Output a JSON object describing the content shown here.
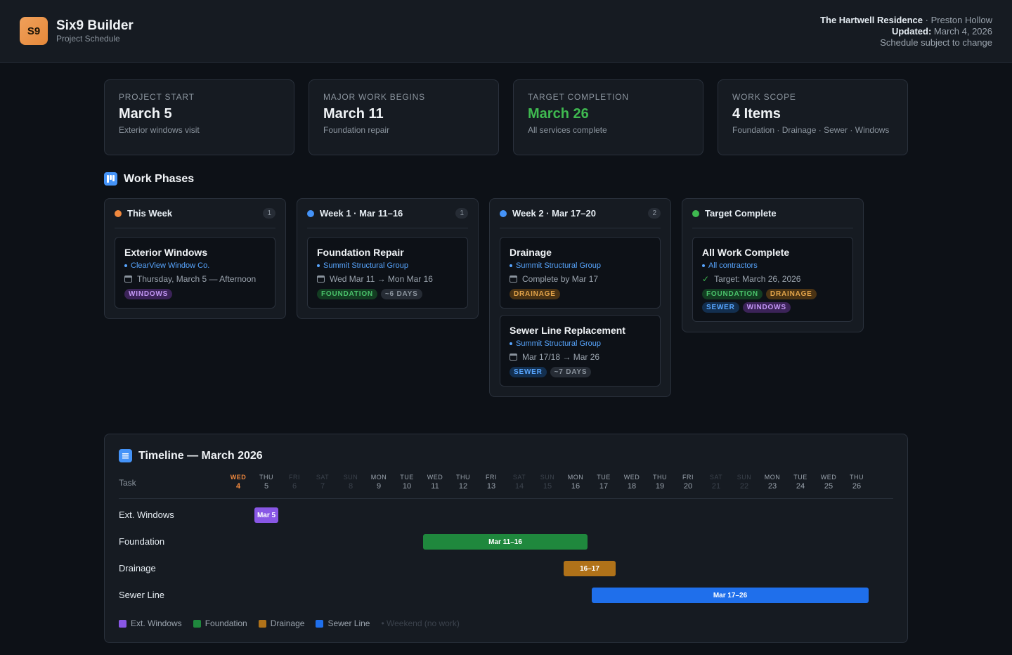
{
  "header": {
    "logo_text": "S9",
    "brand_name": "Six9 Builder",
    "brand_sub": "Project Schedule",
    "project_name": "The Hartwell Residence",
    "project_area": " · Preston Hollow",
    "updated_label": "Updated:",
    "updated_value": " March 4, 2026",
    "note": "Schedule subject to change"
  },
  "stats": [
    {
      "label": "PROJECT START",
      "value": "March 5",
      "desc": "Exterior windows visit"
    },
    {
      "label": "MAJOR WORK BEGINS",
      "value": "March 11",
      "desc": "Foundation repair"
    },
    {
      "label": "TARGET COMPLETION",
      "value": "March 26",
      "desc": "All services complete"
    },
    {
      "label": "WORK SCOPE",
      "value": "4 Items",
      "desc": "Foundation · Drainage · Sewer · Windows"
    }
  ],
  "work_phases": {
    "title": "Work Phases",
    "columns": [
      {
        "title": "This Week",
        "count": "1",
        "dot": "#f0883e",
        "cards": [
          {
            "title": "Exterior Windows",
            "contractor": "ClearView Window Co.",
            "when": "Thursday, March 5 — Afternoon",
            "tags": [
              "WINDOWS"
            ]
          }
        ]
      },
      {
        "title": "Week 1 · Mar 11–16",
        "count": "1",
        "dot": "#4493f8",
        "cards": [
          {
            "title": "Foundation Repair",
            "contractor": "Summit Structural Group",
            "when": "Wed Mar 11 → Mon Mar 16",
            "tags": [
              "FOUNDATION",
              "~6 DAYS"
            ]
          }
        ]
      },
      {
        "title": "Week 2 · Mar 17–20",
        "count": "2",
        "dot": "#4493f8",
        "cards": [
          {
            "title": "Drainage",
            "contractor": "Summit Structural Group",
            "when": "Complete by Mar 17",
            "tags": [
              "DRAINAGE"
            ]
          },
          {
            "title": "Sewer Line Replacement",
            "contractor": "Summit Structural Group",
            "when": "Mar 17/18 → Mar 26",
            "tags": [
              "SEWER",
              "~7 DAYS"
            ]
          }
        ]
      },
      {
        "title": "Target Complete",
        "dot": "#3fb950",
        "cards": [
          {
            "title": "All Work Complete",
            "contractor": "All contractors",
            "when": "Target: March 26, 2026",
            "tags": [
              "FOUNDATION",
              "DRAINAGE",
              "SEWER",
              "WINDOWS"
            ]
          }
        ]
      }
    ]
  },
  "timeline": {
    "title": "Timeline — March 2026",
    "task_label": "Task",
    "days": [
      {
        "dn": "WED",
        "dd": "4",
        "type": "today"
      },
      {
        "dn": "THU",
        "dd": "5",
        "type": "work"
      },
      {
        "dn": "FRI",
        "dd": "6",
        "type": "weekend"
      },
      {
        "dn": "SAT",
        "dd": "7",
        "type": "weekend"
      },
      {
        "dn": "SUN",
        "dd": "8",
        "type": "weekend"
      },
      {
        "dn": "MON",
        "dd": "9",
        "type": "work"
      },
      {
        "dn": "TUE",
        "dd": "10",
        "type": "work"
      },
      {
        "dn": "WED",
        "dd": "11",
        "type": "work"
      },
      {
        "dn": "THU",
        "dd": "12",
        "type": "work"
      },
      {
        "dn": "FRI",
        "dd": "13",
        "type": "work"
      },
      {
        "dn": "SAT",
        "dd": "14",
        "type": "weekend"
      },
      {
        "dn": "SUN",
        "dd": "15",
        "type": "weekend"
      },
      {
        "dn": "MON",
        "dd": "16",
        "type": "work"
      },
      {
        "dn": "TUE",
        "dd": "17",
        "type": "work"
      },
      {
        "dn": "WED",
        "dd": "18",
        "type": "work"
      },
      {
        "dn": "THU",
        "dd": "19",
        "type": "work"
      },
      {
        "dn": "FRI",
        "dd": "20",
        "type": "work"
      },
      {
        "dn": "SAT",
        "dd": "21",
        "type": "weekend"
      },
      {
        "dn": "SUN",
        "dd": "22",
        "type": "weekend"
      },
      {
        "dn": "MON",
        "dd": "23",
        "type": "work"
      },
      {
        "dn": "TUE",
        "dd": "24",
        "type": "work"
      },
      {
        "dn": "WED",
        "dd": "25",
        "type": "work"
      },
      {
        "dn": "THU",
        "dd": "26",
        "type": "work"
      }
    ],
    "rows": [
      {
        "task": "Ext. Windows",
        "start_day": 5,
        "end_day": 5,
        "bar_label": "Mar 5",
        "color": "#8957e5"
      },
      {
        "task": "Foundation",
        "start_day": 11,
        "end_day": 16,
        "bar_label": "Mar 11–16",
        "color": "#1f883d"
      },
      {
        "task": "Drainage",
        "start_day": 16,
        "end_day": 17,
        "bar_label": "16–17",
        "color": "#b07219"
      },
      {
        "task": "Sewer Line",
        "start_day": 17,
        "end_day": 26,
        "bar_label": "Mar 17–26",
        "color": "#1f6feb"
      }
    ],
    "legend": [
      {
        "label": "Ext. Windows",
        "color": "#8957e5"
      },
      {
        "label": "Foundation",
        "color": "#1f883d"
      },
      {
        "label": "Drainage",
        "color": "#b07219"
      },
      {
        "label": "Sewer Line",
        "color": "#1f6feb"
      }
    ],
    "legend_note": "• Weekend (no work)"
  }
}
